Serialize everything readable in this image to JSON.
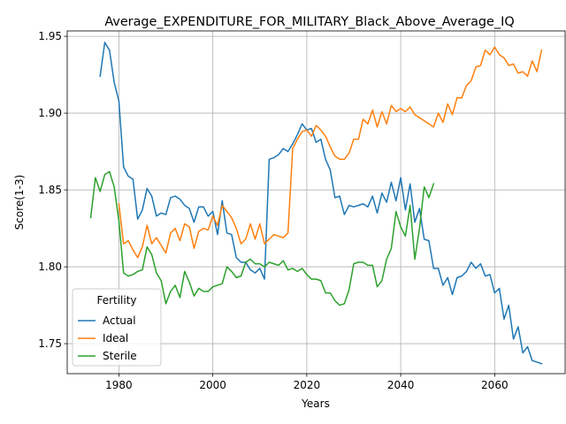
{
  "chart_data": {
    "type": "line",
    "title": "Average_EXPENDITURE_FOR_MILITARY_Black_Above_Average_IQ",
    "xlabel": "Years",
    "ylabel": "Score(1-3)",
    "xlim": [
      1969,
      2075
    ],
    "ylim": [
      1.7305,
      1.9535
    ],
    "xticks": [
      1980,
      2000,
      2020,
      2040,
      2060
    ],
    "yticks": [
      1.75,
      1.8,
      1.85,
      1.9,
      1.95
    ],
    "grid": true,
    "legend": {
      "title": "Fertility",
      "placement": "lower-left"
    },
    "series": [
      {
        "name": "Actual",
        "color": "#1f77b4",
        "x": [
          1976,
          1977,
          1978,
          1979,
          1980,
          1981,
          1982,
          1983,
          1984,
          1985,
          1986,
          1987,
          1988,
          1989,
          1990,
          1991,
          1992,
          1993,
          1994,
          1995,
          1996,
          1997,
          1998,
          1999,
          2000,
          2001,
          2002,
          2003,
          2004,
          2005,
          2006,
          2007,
          2008,
          2009,
          2010,
          2011,
          2012,
          2013,
          2014,
          2015,
          2016,
          2017,
          2018,
          2019,
          2020,
          2021,
          2022,
          2023,
          2024,
          2025,
          2026,
          2027,
          2028,
          2029,
          2030,
          2031,
          2032,
          2033,
          2034,
          2035,
          2036,
          2037,
          2038,
          2039,
          2040,
          2041,
          2042,
          2043,
          2044,
          2045,
          2046,
          2047,
          2048,
          2049,
          2050,
          2051,
          2052,
          2053,
          2054,
          2055,
          2056,
          2057,
          2058,
          2059,
          2060,
          2061,
          2062,
          2063,
          2064,
          2065,
          2066,
          2067,
          2068,
          2069,
          2070
        ],
        "y": [
          1.924,
          1.946,
          1.941,
          1.92,
          1.908,
          1.865,
          1.859,
          1.857,
          1.831,
          1.837,
          1.851,
          1.846,
          1.833,
          1.835,
          1.834,
          1.845,
          1.846,
          1.844,
          1.84,
          1.838,
          1.829,
          1.839,
          1.839,
          1.833,
          1.836,
          1.821,
          1.843,
          1.822,
          1.821,
          1.806,
          1.803,
          1.803,
          1.798,
          1.796,
          1.799,
          1.792,
          1.87,
          1.871,
          1.873,
          1.877,
          1.875,
          1.88,
          1.886,
          1.893,
          1.889,
          1.89,
          1.881,
          1.883,
          1.87,
          1.863,
          1.845,
          1.846,
          1.834,
          1.84,
          1.839,
          1.84,
          1.841,
          1.839,
          1.846,
          1.835,
          1.848,
          1.842,
          1.855,
          1.843,
          1.858,
          1.837,
          1.854,
          1.829,
          1.838,
          1.818,
          1.817,
          1.799,
          1.799,
          1.788,
          1.793,
          1.782,
          1.793,
          1.794,
          1.797,
          1.803,
          1.799,
          1.802,
          1.794,
          1.795,
          1.783,
          1.786,
          1.766,
          1.775,
          1.753,
          1.761,
          1.744,
          1.748,
          1.739,
          1.738,
          1.737
        ]
      },
      {
        "name": "Ideal",
        "color": "#ff7f0e",
        "x": [
          1980,
          1981,
          1982,
          1983,
          1984,
          1985,
          1986,
          1987,
          1988,
          1989,
          1990,
          1991,
          1992,
          1993,
          1994,
          1995,
          1996,
          1997,
          1998,
          1999,
          2000,
          2001,
          2002,
          2003,
          2004,
          2005,
          2006,
          2007,
          2008,
          2009,
          2010,
          2011,
          2012,
          2013,
          2014,
          2015,
          2016,
          2017,
          2018,
          2019,
          2020,
          2021,
          2022,
          2023,
          2024,
          2025,
          2026,
          2027,
          2028,
          2029,
          2030,
          2031,
          2032,
          2033,
          2034,
          2035,
          2036,
          2037,
          2038,
          2039,
          2040,
          2041,
          2042,
          2043,
          2044,
          2045,
          2046,
          2047,
          2048,
          2049,
          2050,
          2051,
          2052,
          2053,
          2054,
          2055,
          2056,
          2057,
          2058,
          2059,
          2060,
          2061,
          2062,
          2063,
          2064,
          2065,
          2066,
          2067,
          2068,
          2069,
          2070
        ],
        "y": [
          1.841,
          1.815,
          1.817,
          1.811,
          1.806,
          1.813,
          1.827,
          1.815,
          1.819,
          1.814,
          1.809,
          1.822,
          1.825,
          1.817,
          1.828,
          1.826,
          1.812,
          1.823,
          1.825,
          1.824,
          1.833,
          1.827,
          1.84,
          1.836,
          1.832,
          1.825,
          1.815,
          1.818,
          1.828,
          1.818,
          1.828,
          1.815,
          1.818,
          1.821,
          1.82,
          1.819,
          1.822,
          1.877,
          1.883,
          1.888,
          1.889,
          1.885,
          1.892,
          1.889,
          1.885,
          1.878,
          1.872,
          1.87,
          1.87,
          1.874,
          1.883,
          1.883,
          1.896,
          1.893,
          1.902,
          1.891,
          1.901,
          1.893,
          1.905,
          1.901,
          1.903,
          1.901,
          1.904,
          1.899,
          1.897,
          1.895,
          1.893,
          1.891,
          1.9,
          1.894,
          1.906,
          1.899,
          1.91,
          1.91,
          1.918,
          1.921,
          1.93,
          1.931,
          1.941,
          1.938,
          1.943,
          1.938,
          1.936,
          1.931,
          1.932,
          1.926,
          1.927,
          1.924,
          1.934,
          1.927,
          1.941
        ]
      },
      {
        "name": "Sterile",
        "color": "#2ca02c",
        "x": [
          1974,
          1975,
          1976,
          1977,
          1978,
          1979,
          1980,
          1981,
          1982,
          1983,
          1984,
          1985,
          1986,
          1987,
          1988,
          1989,
          1990,
          1991,
          1992,
          1993,
          1994,
          1995,
          1996,
          1997,
          1998,
          1999,
          2000,
          2001,
          2002,
          2003,
          2004,
          2005,
          2006,
          2007,
          2008,
          2009,
          2010,
          2011,
          2012,
          2013,
          2014,
          2015,
          2016,
          2017,
          2018,
          2019,
          2020,
          2021,
          2022,
          2023,
          2024,
          2025,
          2026,
          2027,
          2028,
          2029,
          2030,
          2031,
          2032,
          2033,
          2034,
          2035,
          2036,
          2037,
          2038,
          2039,
          2040,
          2041,
          2042,
          2043,
          2044,
          2045,
          2046,
          2047
        ],
        "y": [
          1.832,
          1.858,
          1.849,
          1.86,
          1.862,
          1.852,
          1.83,
          1.796,
          1.794,
          1.795,
          1.797,
          1.798,
          1.813,
          1.808,
          1.796,
          1.791,
          1.776,
          1.784,
          1.788,
          1.78,
          1.797,
          1.79,
          1.781,
          1.786,
          1.784,
          1.784,
          1.787,
          1.788,
          1.789,
          1.8,
          1.797,
          1.793,
          1.794,
          1.803,
          1.805,
          1.802,
          1.802,
          1.8,
          1.803,
          1.802,
          1.801,
          1.804,
          1.798,
          1.799,
          1.797,
          1.799,
          1.795,
          1.792,
          1.792,
          1.791,
          1.783,
          1.783,
          1.778,
          1.775,
          1.776,
          1.785,
          1.802,
          1.803,
          1.803,
          1.801,
          1.801,
          1.787,
          1.791,
          1.805,
          1.812,
          1.836,
          1.826,
          1.82,
          1.84,
          1.805,
          1.825,
          1.852,
          1.845,
          1.854
        ]
      }
    ]
  }
}
